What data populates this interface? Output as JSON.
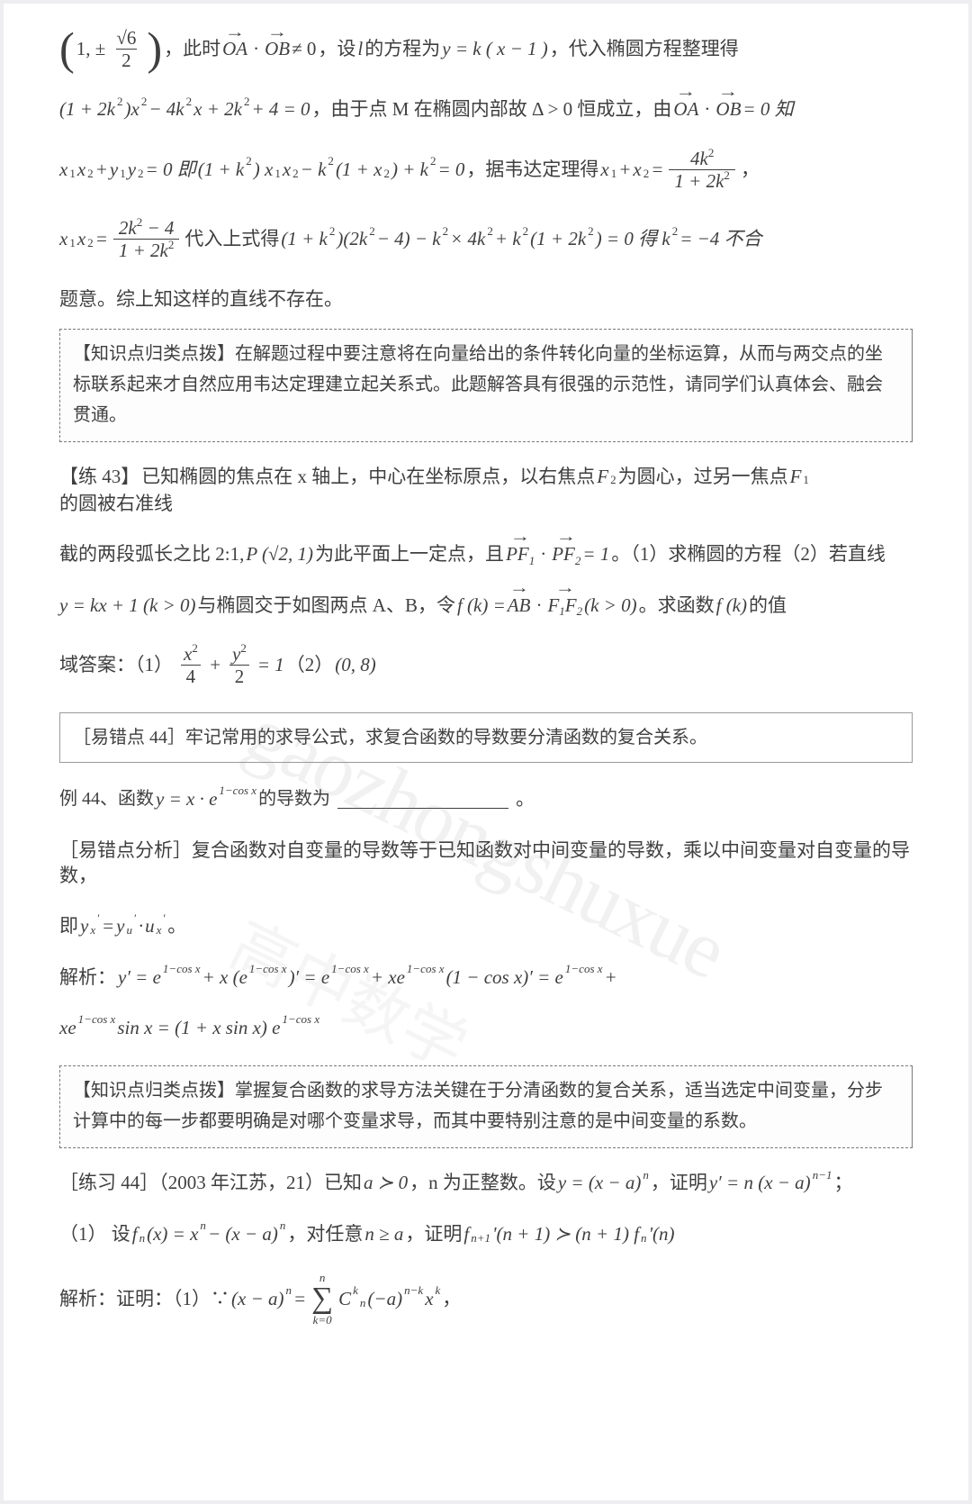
{
  "colors": {
    "page_bg": "#ffffff",
    "body_bg": "#eeeef0",
    "text": "#3f3f3f",
    "box_border": "#7a7a7a",
    "rule_border": "#9a9a9a",
    "watermark": "rgba(128,128,128,0.11)"
  },
  "watermark": {
    "main": "gaozhongshuxue",
    "cn": "高中数学"
  },
  "l1": {
    "pre": "，此时 ",
    "post": "，设 ",
    "c": " 的方程为 ",
    "d": "，代入椭圆方程整理得",
    "oa": "OA",
    "ob": "OB",
    "dot": "·",
    "ne": " ≠ 0",
    "l": "l",
    "eq": "y = k ( x − 1 )",
    "pm": "1, ±",
    "sq6": "√6",
    "two": "2"
  },
  "l2": {
    "eq": "(1 + 2k",
    "sq": ")x",
    "mid": " − 4k",
    "x": "x + 2k",
    "plus": " + 4 = 0",
    "t1": "，由于点 M 在椭圆内部故 Δ > 0 恒成立，由 ",
    "oa": "OA",
    "ob": "OB",
    "dot": "·",
    "eq0": " = 0 知",
    "exp": "2"
  },
  "l3": {
    "a": "x",
    "b": "y",
    "plus": " + ",
    "eq0": " = 0 即",
    "c": "(1 + k",
    "d": ") x",
    "e": " − k",
    "f": "(1 + x",
    "g": ") + k",
    "h": " = 0",
    "t": "，据韦达定理得 ",
    "sum": "x",
    "eqf": " = ",
    "fn": "4k",
    "fd": "1 + 2k",
    "comma": "，",
    "s1": "1",
    "s2": "2",
    "exp": "2"
  },
  "l4": {
    "xx": "x",
    "eq": " = ",
    "fn": "2k",
    "minus": " − 4",
    "fd": "1 + 2k",
    "t1": " 代入上式得",
    "a": "(1 + k",
    "b": ")(2k",
    "c": " − 4) − k",
    "d": " × 4k",
    "e": " + k",
    "f": "(1 + 2k",
    "g": ") = 0 得 k",
    "h": " = −4 不合",
    "exp": "2",
    "s1": "1",
    "s2": "2"
  },
  "l5": "题意。综上知这样的直线不存在。",
  "box1": {
    "title": "【知识点归类点拨】",
    "body": "在解题过程中要注意将在向量给出的条件转化向量的坐标运算，从而与两交点的坐标联系起来才自然应用韦达定理建立起关系式。此题解答具有很强的示范性，请同学们认真体会、融会贯通。"
  },
  "l6": {
    "title": "【练 43】",
    "body": "已知椭圆的焦点在 x 轴上，中心在坐标原点，以右焦点 ",
    "f2": "F",
    "s2": "2",
    "mid": " 为圆心，过另一焦点 ",
    "f1": "F",
    "s1": "1",
    "end": " 的圆被右准线"
  },
  "l7": {
    "a": "截的两段弧长之比 2:1, ",
    "p": "P (√2, 1)",
    "b": " 为此平面上一定点，且 ",
    "pf1": "PF",
    "pf2": "PF",
    "dot": "·",
    "eq": " = 1",
    "c": "。（1）求椭圆的方程（2）若直线",
    "s1": "1",
    "s2": "2"
  },
  "l8": {
    "eq": "y = kx + 1 (k > 0)",
    "a": " 与椭圆交于如图两点 A、B，令 ",
    "f": "f (k) = ",
    "ab": "AB",
    "dot": "·",
    "ff": "F",
    "ff2": "F",
    "cond": " (k > 0)",
    "b": "。求函数 ",
    "fk": "f (k)",
    "c": " 的值",
    "s1": "1",
    "s2": "2"
  },
  "l9": {
    "a": "域答案：（1）",
    "xn": "x",
    "xd": "4",
    "plus": " + ",
    "yn": "y",
    "yd": "2",
    "eq": " = 1",
    "b": "（2）",
    "int": "(0, 8)",
    "exp": "2"
  },
  "rule44": "［易错点 44］牢记常用的求导公式，求复合函数的导数要分清函数的复合关系。",
  "l10": {
    "a": "例 44、函数 ",
    "eq": "y = x · e",
    "exp": "1−cos x",
    "b": " 的导数为",
    "c": "。"
  },
  "l11": "［易错点分析］复合函数对自变量的导数等于已知函数对中间变量的导数，乘以中间变量对自变量的导数，",
  "l12": {
    "a": "即 ",
    "y": "y",
    "x": "x",
    "u": "u",
    "pr": "′",
    "dot": " · ",
    "eq": " = ",
    "end": "。"
  },
  "l13": {
    "a": "解析：  ",
    "y": "y′ = e",
    "e": "1−cos x",
    "p": " + x (e",
    "q": ")′ = e",
    "r": " + xe",
    "s": "(1 − cos x)′ = e",
    "t": " +"
  },
  "l14": {
    "a": "xe",
    "e": "1−cos x",
    "b": " sin x = (1 + x sin x) e"
  },
  "box2": {
    "title": "【知识点归类点拨】",
    "body": "掌握复合函数的求导方法关键在于分清函数的复合关系，适当选定中间变量，分步计算中的每一步都要明确是对哪个变量求导，而其中要特别注意的是中间变量的系数。"
  },
  "l15": {
    "a": "［练习 44］（2003 年江苏，21）已知 ",
    "b": "a ≻ 0",
    "c": "，n 为正整数。设 ",
    "d": "y = (x − a)",
    "n": "n",
    "e": "，证明 ",
    "f": "y′ = n (x − a)",
    "n1": "n−1",
    "g": "；"
  },
  "l16": {
    "a": "（1）    设 ",
    "fn": "f",
    "n": "n",
    "b": "(x) = x",
    "nn": "n",
    "c": " − (x − a)",
    "d": "，对任意 ",
    "e": "n ≥ a",
    "f": "，证明 ",
    "fn1": "f",
    "n1": "n+1",
    "g": "'(n + 1) ≻ (n + 1) f",
    "h": "'(n)"
  },
  "l17": {
    "a": "解析：证明：（1）∵ ",
    "b": "(x − a)",
    "n": "n",
    "eq": " = ",
    "st": "n",
    "sb": "k=0",
    "c": "C",
    "nk": "k",
    "nn": "n",
    "d": "(−a)",
    "e": "n−k",
    "sp": " x",
    "f": "k",
    "g": "，"
  }
}
